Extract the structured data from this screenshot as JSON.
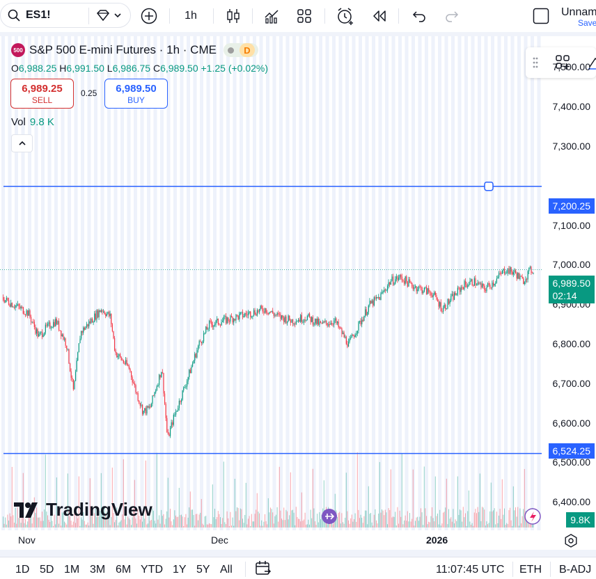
{
  "toolbar": {
    "symbol": "ES1!",
    "interval": "1h",
    "layout_name": "Unnam",
    "save_label": "Save"
  },
  "legend": {
    "badge": "500",
    "title": "S&P 500 E-mini Futures · 1h · CME",
    "status_letter": "D",
    "ohlc": {
      "o_label": "O",
      "o": "6,988.25",
      "h_label": "H",
      "h": "6,991.50",
      "l_label": "L",
      "l": "6,986.75",
      "c_label": "C",
      "c": "6,989.50",
      "change": "+1.25 (+0.02%)"
    },
    "sell_price": "6,989.25",
    "sell_label": "SELL",
    "spread": "0.25",
    "buy_price": "6,989.50",
    "buy_label": "BUY",
    "vol_label": "Vol",
    "vol_value": "9.8 K"
  },
  "price_axis": {
    "ticks": [
      "7,500.00",
      "7,400.00",
      "7,300.00",
      "7,100.00",
      "7,000.00",
      "6,900.00",
      "6,800.00",
      "6,700.00",
      "6,600.00",
      "6,500.00",
      "6,400.00"
    ],
    "upper_line_label": "7,200.25",
    "current_price": "6,989.50",
    "countdown": "02:14",
    "lower_line_label": "6,524.25",
    "volume_label": "9.8K"
  },
  "time_axis": {
    "labels": [
      "Nov",
      "Dec",
      "2026"
    ]
  },
  "bottom": {
    "ranges": [
      "1D",
      "5D",
      "1M",
      "3M",
      "6M",
      "YTD",
      "1Y",
      "5Y",
      "All"
    ],
    "clock": "11:07:45 UTC",
    "session": "ETH",
    "adjust": "B-ADJ"
  },
  "watermark": "TradingView",
  "colors": {
    "up": "#089981",
    "down": "#f23645",
    "line": "#2962ff",
    "sell": "#d32f2f",
    "buy": "#2962ff"
  },
  "chart_data": {
    "type": "candlestick",
    "title": "S&P 500 E-mini Futures · 1h · CME",
    "ylim": [
      6330,
      7580
    ],
    "x_labels": [
      "Nov",
      "Dec",
      "2026"
    ],
    "horizontal_lines": [
      7200.25,
      6524.25
    ],
    "last_price": 6989.5,
    "close_path": [
      [
        0,
        6920
      ],
      [
        20,
        6900
      ],
      [
        40,
        6880
      ],
      [
        55,
        6820
      ],
      [
        65,
        6840
      ],
      [
        80,
        6860
      ],
      [
        95,
        6800
      ],
      [
        105,
        6680
      ],
      [
        115,
        6830
      ],
      [
        130,
        6860
      ],
      [
        145,
        6890
      ],
      [
        158,
        6870
      ],
      [
        165,
        6780
      ],
      [
        175,
        6760
      ],
      [
        185,
        6740
      ],
      [
        195,
        6680
      ],
      [
        205,
        6630
      ],
      [
        215,
        6640
      ],
      [
        225,
        6700
      ],
      [
        232,
        6740
      ],
      [
        240,
        6560
      ],
      [
        248,
        6610
      ],
      [
        258,
        6660
      ],
      [
        270,
        6720
      ],
      [
        285,
        6800
      ],
      [
        300,
        6850
      ],
      [
        320,
        6860
      ],
      [
        340,
        6870
      ],
      [
        360,
        6880
      ],
      [
        380,
        6890
      ],
      [
        400,
        6870
      ],
      [
        420,
        6860
      ],
      [
        440,
        6870
      ],
      [
        460,
        6850
      ],
      [
        480,
        6860
      ],
      [
        500,
        6800
      ],
      [
        515,
        6850
      ],
      [
        530,
        6900
      ],
      [
        545,
        6920
      ],
      [
        560,
        6960
      ],
      [
        575,
        6970
      ],
      [
        590,
        6950
      ],
      [
        605,
        6940
      ],
      [
        620,
        6930
      ],
      [
        635,
        6890
      ],
      [
        650,
        6920
      ],
      [
        665,
        6950
      ],
      [
        680,
        6960
      ],
      [
        695,
        6940
      ],
      [
        710,
        6960
      ],
      [
        725,
        6990
      ],
      [
        740,
        6980
      ],
      [
        750,
        6960
      ],
      [
        760,
        6985
      ],
      [
        765,
        6989.5
      ]
    ]
  }
}
